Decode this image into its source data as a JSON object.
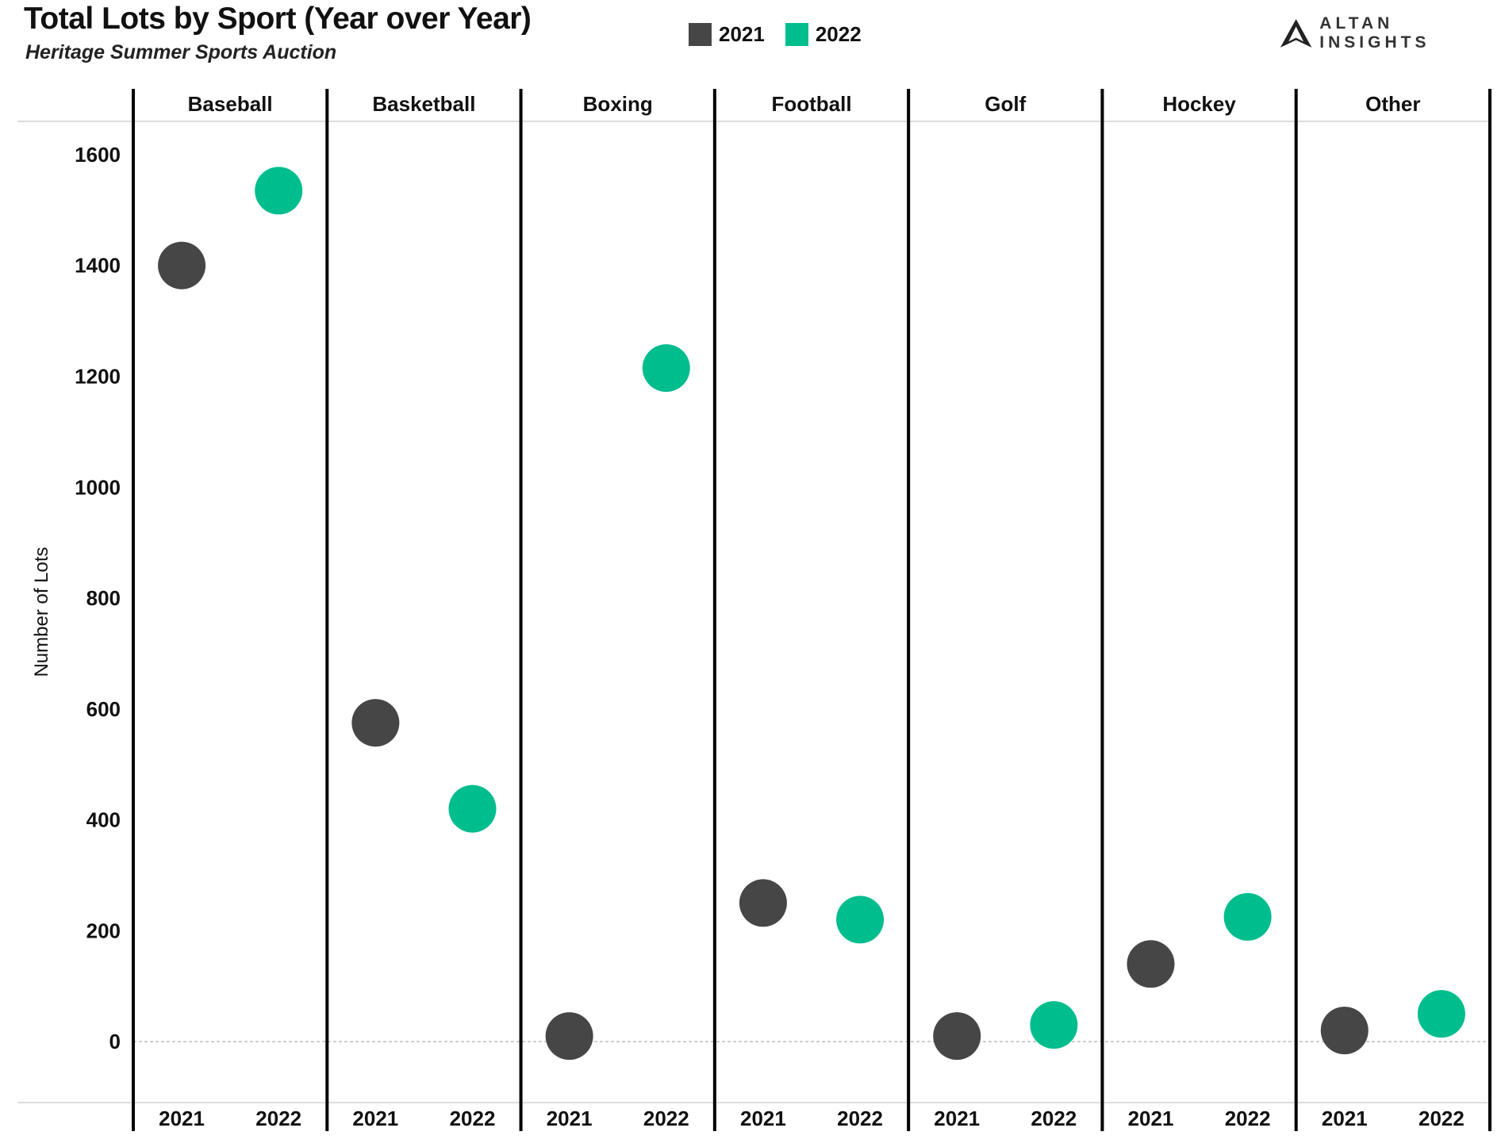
{
  "chart_data": {
    "type": "scatter",
    "title": "Total Lots by Sport (Year over Year)",
    "subtitle": "Heritage Summer Sports Auction",
    "ylabel": "Number of Lots",
    "xlabel": "",
    "ylim": [
      -110,
      1660
    ],
    "yticks": [
      0,
      200,
      400,
      600,
      800,
      1000,
      1200,
      1400,
      1600
    ],
    "facets": [
      "Baseball",
      "Basketball",
      "Boxing",
      "Football",
      "Golf",
      "Hockey",
      "Other"
    ],
    "categories": [
      "2021",
      "2022"
    ],
    "series": [
      {
        "name": "2021",
        "color": "#464646",
        "values": [
          1400,
          575,
          10,
          250,
          10,
          140,
          20
        ]
      },
      {
        "name": "2022",
        "color": "#00bd8e",
        "values": [
          1535,
          420,
          1215,
          220,
          30,
          225,
          50
        ]
      }
    ],
    "grid": false,
    "legend_position": "top-center"
  },
  "brand": {
    "name": "ALTAN INSIGHTS",
    "icon": "altan-mountain-logo-icon"
  }
}
